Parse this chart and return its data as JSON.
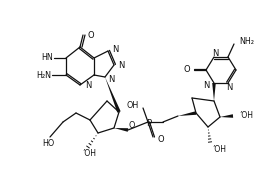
{
  "bg": "#ffffff",
  "lc": "#111111",
  "lw": 0.9,
  "figsize": [
    2.72,
    1.89
  ],
  "dpi": 100,
  "xlim": [
    0,
    272
  ],
  "ylim": [
    0,
    189
  ]
}
